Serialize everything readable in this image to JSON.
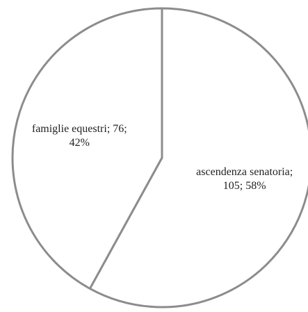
{
  "chart_data": {
    "type": "pie",
    "values": [
      105,
      76
    ],
    "value_labels": [
      "ascendenza senatoria; 105; 58%",
      "famiglie equestri; 76; 42%"
    ],
    "color": "#ffffff",
    "edge_color": "#8c8c8c"
  }
}
